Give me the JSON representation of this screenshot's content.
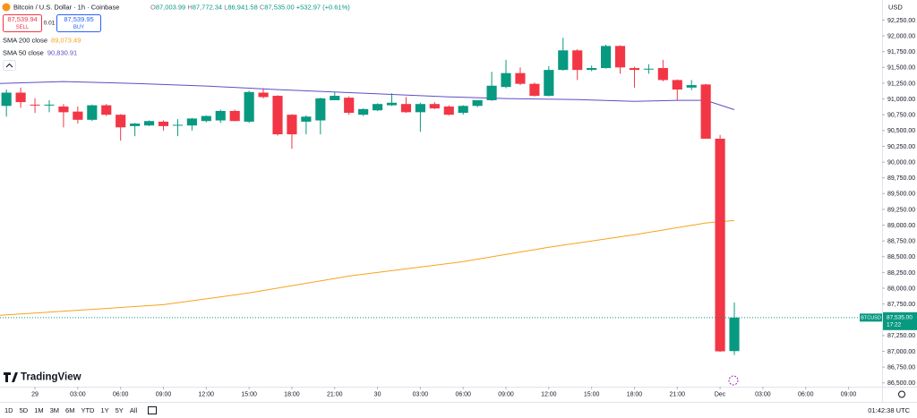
{
  "header": {
    "symbol": "Bitcoin / U.S. Dollar · 1h · Coinbase",
    "ohlc": [
      {
        "key": "O",
        "value": "87,003.99"
      },
      {
        "key": "H",
        "value": "87,772.34"
      },
      {
        "key": "L",
        "value": "86,941.58"
      },
      {
        "key": "C",
        "value": "87,535.00"
      }
    ],
    "change": "+532.97 (+0.61%)",
    "sell_price": "87,539.94",
    "sell": "SELL",
    "spread": "0.01",
    "buy_price": "87,539.95",
    "buy": "BUY"
  },
  "chart_data": {
    "type": "candlestick",
    "currency": "USD",
    "brand": "TradingView",
    "up_color": "#089981",
    "down_color": "#f23645",
    "x": [
      -2,
      -1,
      0,
      1,
      2,
      3,
      4,
      5,
      6,
      7,
      8,
      9,
      10,
      11,
      12,
      13,
      14,
      15,
      16,
      17,
      18,
      19,
      20,
      21,
      22,
      23,
      24,
      25,
      26,
      27,
      28,
      29,
      30,
      31,
      32,
      33,
      34,
      35,
      36,
      37,
      38,
      39,
      40,
      41,
      42,
      43,
      44,
      45,
      46,
      47,
      48,
      49
    ],
    "open": [
      90890,
      91100,
      90910,
      90900,
      90880,
      90800,
      90670,
      90900,
      90750,
      90570,
      90580,
      90640,
      90580,
      90580,
      90650,
      90660,
      90810,
      90640,
      91100,
      91050,
      90750,
      90640,
      90660,
      90980,
      91020,
      90750,
      90820,
      90900,
      90920,
      90790,
      90920,
      90880,
      90780,
      90890,
      90980,
      91190,
      91410,
      91240,
      91050,
      91460,
      91770,
      91460,
      91490,
      91840,
      91490,
      91480,
      91490,
      91300,
      91180,
      91230,
      90370,
      87003.99
    ],
    "high": [
      91150,
      91180,
      91010,
      90980,
      90920,
      90880,
      90910,
      90920,
      90760,
      90620,
      90660,
      90660,
      90680,
      90700,
      90740,
      90830,
      90830,
      91130,
      91170,
      91060,
      90760,
      90740,
      91020,
      91110,
      91040,
      90850,
      90930,
      91090,
      91030,
      90940,
      90950,
      90900,
      90900,
      90980,
      91430,
      91620,
      91500,
      91260,
      91520,
      91970,
      91790,
      91530,
      91860,
      91850,
      91510,
      91550,
      91620,
      91310,
      91300,
      91240,
      90430,
      87772.34
    ],
    "low": [
      90720,
      90860,
      90780,
      90790,
      90550,
      90610,
      90650,
      90730,
      90340,
      90410,
      90570,
      90500,
      90410,
      90500,
      90630,
      90620,
      90650,
      90620,
      91010,
      90420,
      90210,
      90440,
      90440,
      90990,
      90750,
      90730,
      90810,
      90890,
      90780,
      90480,
      90840,
      90740,
      90750,
      90870,
      90970,
      91170,
      91220,
      91040,
      91040,
      91450,
      91300,
      91440,
      91480,
      91400,
      91180,
      91400,
      91280,
      90980,
      91140,
      90380,
      86990,
      86941.58
    ],
    "close": [
      91100,
      90950,
      90900,
      90910,
      90790,
      90670,
      90900,
      90750,
      90550,
      90610,
      90650,
      90570,
      90590,
      90690,
      90730,
      90810,
      90650,
      91110,
      91030,
      90440,
      90440,
      90720,
      91010,
      91050,
      90780,
      90840,
      90920,
      90940,
      90790,
      90920,
      90850,
      90750,
      90890,
      90980,
      91210,
      91410,
      91240,
      91050,
      91460,
      91770,
      91460,
      91490,
      91840,
      91500,
      91460,
      91480,
      91300,
      91150,
      91220,
      90370,
      87000,
      87535.0
    ],
    "overlays": [
      {
        "name": "SMA 200 close",
        "color": "#f7a21b",
        "value_label": "89,073.49",
        "x": [
          -2.45,
          9,
          15,
          22,
          30,
          36,
          42,
          47,
          49
        ],
        "values": [
          87570,
          87740,
          87925,
          88194,
          88422,
          88650,
          88849,
          89034,
          89073.49
        ]
      },
      {
        "name": "SMA 50 close",
        "color": "#5b4fc4",
        "value_label": "90,830.91",
        "x": [
          -2.45,
          2,
          7,
          12,
          17,
          23,
          29,
          33,
          38,
          42,
          45,
          47,
          49
        ],
        "values": [
          91247,
          91276,
          91247,
          91205,
          91148,
          91091,
          91034,
          91006,
          90990,
          90963,
          90978,
          90978,
          90830.91
        ]
      }
    ],
    "price_tag": {
      "symbol": "BTCUSD",
      "price": "87,535.00",
      "countdown": "17:22"
    },
    "xlim": [
      -2.45,
      59.35
    ],
    "xticks": [
      {
        "value": 0,
        "label": "29"
      },
      {
        "value": 3,
        "label": "03:00"
      },
      {
        "value": 6,
        "label": "06:00"
      },
      {
        "value": 9,
        "label": "09:00"
      },
      {
        "value": 12,
        "label": "12:00"
      },
      {
        "value": 15,
        "label": "15:00"
      },
      {
        "value": 18,
        "label": "18:00"
      },
      {
        "value": 21,
        "label": "21:00"
      },
      {
        "value": 24,
        "label": "30"
      },
      {
        "value": 27,
        "label": "03:00"
      },
      {
        "value": 30,
        "label": "06:00"
      },
      {
        "value": 33,
        "label": "09:00"
      },
      {
        "value": 36,
        "label": "12:00"
      },
      {
        "value": 39,
        "label": "15:00"
      },
      {
        "value": 42,
        "label": "18:00"
      },
      {
        "value": 45,
        "label": "21:00"
      },
      {
        "value": 48,
        "label": "Dec"
      },
      {
        "value": 51,
        "label": "03:00"
      },
      {
        "value": 54,
        "label": "06:00"
      },
      {
        "value": 57,
        "label": "09:00"
      }
    ],
    "ylim": [
      86440,
      92455
    ],
    "yticks": [
      {
        "value": 86500,
        "label": "86,500.00"
      },
      {
        "value": 86750,
        "label": "86,750.00"
      },
      {
        "value": 87000,
        "label": "87,000.00"
      },
      {
        "value": 87250,
        "label": "87,250.00"
      },
      {
        "value": 87750,
        "label": "87,750.00"
      },
      {
        "value": 88000,
        "label": "88,000.00"
      },
      {
        "value": 88250,
        "label": "88,250.00"
      },
      {
        "value": 88500,
        "label": "88,500.00"
      },
      {
        "value": 88750,
        "label": "88,750.00"
      },
      {
        "value": 89000,
        "label": "89,000.00"
      },
      {
        "value": 89250,
        "label": "89,250.00"
      },
      {
        "value": 89500,
        "label": "89,500.00"
      },
      {
        "value": 89750,
        "label": "89,750.00"
      },
      {
        "value": 90000,
        "label": "90,000.00"
      },
      {
        "value": 90250,
        "label": "90,250.00"
      },
      {
        "value": 90500,
        "label": "90,500.00"
      },
      {
        "value": 90750,
        "label": "90,750.00"
      },
      {
        "value": 91000,
        "label": "91,000.00"
      },
      {
        "value": 91250,
        "label": "91,250.00"
      },
      {
        "value": 91500,
        "label": "91,500.00"
      },
      {
        "value": 91750,
        "label": "91,750.00"
      },
      {
        "value": 92000,
        "label": "92,000.00"
      },
      {
        "value": 92250,
        "label": "92,250.00"
      }
    ]
  },
  "toolbar": {
    "ranges": [
      "1D",
      "5D",
      "1M",
      "3M",
      "6M",
      "YTD",
      "1Y",
      "5Y",
      "All"
    ],
    "time": "01:42:38 UTC"
  }
}
